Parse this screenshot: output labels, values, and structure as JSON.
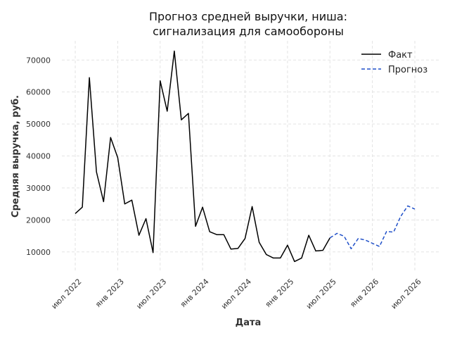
{
  "chart_data": {
    "type": "line",
    "title_lines": [
      "Прогноз средней выручки, ниша:",
      "сигнализация для самообороны"
    ],
    "xlabel": "Дата",
    "ylabel": "Средняя выручка, руб.",
    "ylim": [
      4000,
      76000
    ],
    "yticks": [
      10000,
      20000,
      30000,
      40000,
      50000,
      60000,
      70000
    ],
    "xticks": [
      {
        "date": "2022-07",
        "label": "июл 2022"
      },
      {
        "date": "2023-01",
        "label": "янв 2023"
      },
      {
        "date": "2023-07",
        "label": "июл 2023"
      },
      {
        "date": "2024-01",
        "label": "янв 2024"
      },
      {
        "date": "2024-07",
        "label": "июл 2024"
      },
      {
        "date": "2025-01",
        "label": "янв 2025"
      },
      {
        "date": "2025-07",
        "label": "июл 2025"
      },
      {
        "date": "2026-01",
        "label": "янв 2026"
      },
      {
        "date": "2026-07",
        "label": "июл 2026"
      }
    ],
    "grid": true,
    "legend_position": "top-right",
    "series": [
      {
        "name": "Факт",
        "color": "#000000",
        "style": "solid",
        "x": [
          "2022-07",
          "2022-08",
          "2022-09",
          "2022-10",
          "2022-11",
          "2022-12",
          "2023-01",
          "2023-02",
          "2023-03",
          "2023-04",
          "2023-05",
          "2023-06",
          "2023-07",
          "2023-08",
          "2023-09",
          "2023-10",
          "2023-11",
          "2023-12",
          "2024-01",
          "2024-02",
          "2024-03",
          "2024-04",
          "2024-05",
          "2024-06",
          "2024-07",
          "2024-08",
          "2024-09",
          "2024-10",
          "2024-11",
          "2024-12",
          "2025-01",
          "2025-02",
          "2025-03",
          "2025-04",
          "2025-05",
          "2025-06",
          "2025-07"
        ],
        "y": [
          22000,
          24000,
          64500,
          35000,
          25700,
          45800,
          39500,
          25000,
          26200,
          15200,
          20400,
          9800,
          63500,
          54000,
          72800,
          51300,
          53300,
          18000,
          24000,
          16300,
          15400,
          15400,
          10900,
          11100,
          14200,
          24200,
          13000,
          9200,
          8100,
          8100,
          12100,
          7000,
          8100,
          15200,
          10300,
          10500,
          14400
        ]
      },
      {
        "name": "Прогноз",
        "color": "#1f4fc8",
        "style": "dashed",
        "x": [
          "2025-08",
          "2025-09",
          "2025-10",
          "2025-11",
          "2025-12",
          "2026-01",
          "2026-02",
          "2026-03",
          "2026-04",
          "2026-05",
          "2026-06",
          "2026-07"
        ],
        "y": [
          15800,
          14900,
          11000,
          14200,
          13700,
          12700,
          11700,
          16400,
          16200,
          21100,
          24400,
          23400
        ]
      }
    ]
  }
}
